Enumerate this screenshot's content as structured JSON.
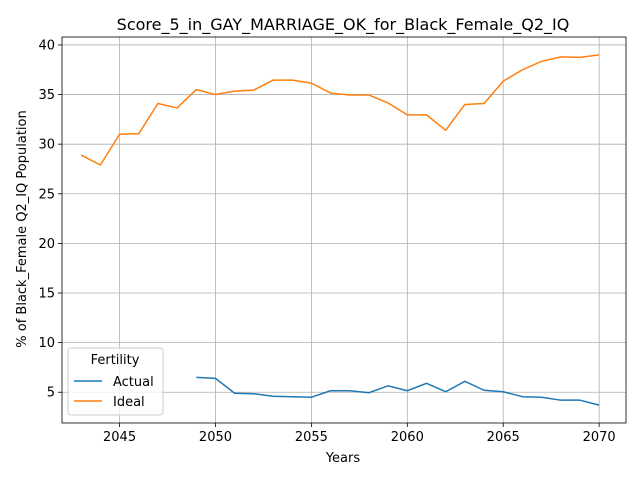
{
  "chart_data": {
    "type": "line",
    "title": "Score_5_in_GAY_MARRIAGE_OK_for_Black_Female_Q2_IQ",
    "xlabel": "Years",
    "ylabel": "% of Black_Female Q2_IQ Population",
    "xlim": [
      2042,
      2071.4
    ],
    "ylim": [
      1.9,
      40.8
    ],
    "xticks": [
      2045,
      2050,
      2055,
      2060,
      2065,
      2070
    ],
    "yticks": [
      5,
      10,
      15,
      20,
      25,
      30,
      35,
      40
    ],
    "grid": true,
    "legend": {
      "title": "Fertility",
      "placement": "lower-left"
    },
    "series": [
      {
        "name": "Actual",
        "color": "#1f77b4",
        "x": [
          2049,
          2050,
          2051,
          2052,
          2053,
          2054,
          2055,
          2056,
          2057,
          2058,
          2059,
          2060,
          2061,
          2062,
          2063,
          2064,
          2065,
          2066,
          2067,
          2068,
          2069,
          2070
        ],
        "values": [
          6.5,
          6.4,
          4.9,
          4.85,
          4.6,
          4.55,
          4.5,
          5.15,
          5.15,
          4.95,
          5.65,
          5.15,
          5.9,
          5.05,
          6.1,
          5.2,
          5.05,
          4.55,
          4.5,
          4.2,
          4.2,
          3.7
        ]
      },
      {
        "name": "Ideal",
        "color": "#ff7f0e",
        "x": [
          2043,
          2044,
          2045,
          2046,
          2047,
          2048,
          2049,
          2050,
          2051,
          2052,
          2053,
          2054,
          2055,
          2056,
          2057,
          2058,
          2059,
          2060,
          2061,
          2062,
          2063,
          2064,
          2065,
          2066,
          2067,
          2068,
          2069,
          2070
        ],
        "values": [
          28.9,
          27.9,
          31.0,
          31.05,
          34.1,
          33.65,
          35.5,
          35.0,
          35.35,
          35.45,
          36.45,
          36.45,
          36.15,
          35.15,
          34.95,
          34.95,
          34.15,
          32.95,
          32.95,
          31.4,
          34.0,
          34.1,
          36.35,
          37.5,
          38.35,
          38.8,
          38.75,
          39.0
        ]
      }
    ]
  }
}
